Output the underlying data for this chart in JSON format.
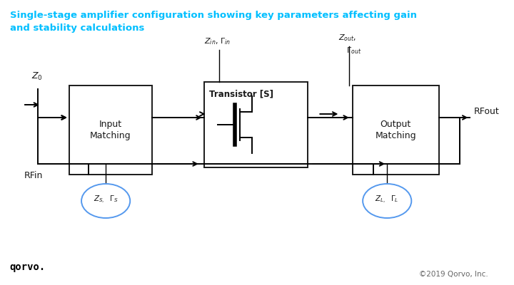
{
  "title_line1": "Single-stage amplifier configuration showing key parameters affecting gain",
  "title_line2": "and stability calculations",
  "title_color": "#00BFFF",
  "bg_color": "#FFFFFF",
  "text_color": "#1a1a1a",
  "box_color": "#1a1a1a",
  "circle_color": "#5599EE",
  "copyright": "©2019 Qorvo, Inc.",
  "qorvo_text": "qorvo."
}
